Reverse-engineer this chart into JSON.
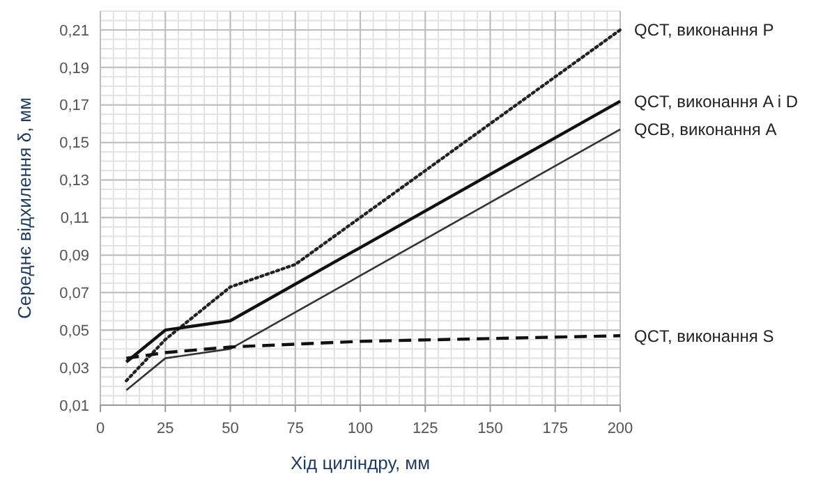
{
  "chart_data": {
    "type": "line",
    "xlabel": "Хід циліндру, мм",
    "ylabel": "Середнє відхилення δ, мм",
    "xlim": [
      0,
      200
    ],
    "xticks": [
      0,
      25,
      50,
      75,
      100,
      125,
      150,
      175,
      200
    ],
    "ylim": [
      0.01,
      0.22
    ],
    "yticks": [
      {
        "value": 0.01,
        "label": "0,01"
      },
      {
        "value": 0.03,
        "label": "0,03"
      },
      {
        "value": 0.05,
        "label": "0,05"
      },
      {
        "value": 0.07,
        "label": "0,07"
      },
      {
        "value": 0.09,
        "label": "0,09"
      },
      {
        "value": 0.11,
        "label": "0,11"
      },
      {
        "value": 0.13,
        "label": "0,13"
      },
      {
        "value": 0.15,
        "label": "0,15"
      },
      {
        "value": 0.17,
        "label": "0,17"
      },
      {
        "value": 0.19,
        "label": "0,19"
      },
      {
        "value": 0.21,
        "label": "0,21"
      }
    ],
    "grid": true,
    "series": [
      {
        "name": "QCT, виконання P",
        "color": "#222222",
        "line_style": "dotted",
        "x": [
          10,
          25,
          50,
          75,
          200
        ],
        "values": [
          0.023,
          0.045,
          0.073,
          0.085,
          0.21
        ]
      },
      {
        "name": "QCT, виконання A і D",
        "color": "#111111",
        "line_style": "solid",
        "x": [
          10,
          25,
          50,
          200
        ],
        "values": [
          0.033,
          0.05,
          0.055,
          0.172
        ]
      },
      {
        "name": "QCB, виконання A",
        "color": "#333333",
        "line_style": "solid",
        "x": [
          10,
          25,
          50,
          200
        ],
        "values": [
          0.018,
          0.035,
          0.04,
          0.157
        ]
      },
      {
        "name": "QCT, виконання S",
        "color": "#111111",
        "line_style": "dashed",
        "x": [
          10,
          25,
          50,
          100,
          200
        ],
        "values": [
          0.035,
          0.038,
          0.041,
          0.044,
          0.047
        ]
      }
    ]
  }
}
